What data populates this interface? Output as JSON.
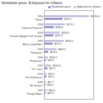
{
  "chart_data": {
    "type": "bar",
    "orientation": "horizontal",
    "title": "Worldwide gross, $ Adjusted for inflation",
    "categories": [
      "1990\n\"Ghost\"",
      "1993\n\"Indecent Proposal\"",
      "2003\n\"Charlie's Angels: Full Throttle\"",
      "1992\n\"A Few Good Men\"",
      "1996\n\"Striptease\"",
      "1996\n\"Stripteaser\"",
      "1997\n\"G.I. Jane\"",
      "2024\n\"The Substance\"",
      "2009\n\"Mr. Brooks\"",
      "1997\n\"Rough Magic\""
    ],
    "series": [
      {
        "name": "Worldwide gross",
        "color": "#9896c8",
        "values": [
          505.7,
          266.6,
          259.2,
          237.2,
          114.0,
          53.3,
          97.2,
          70.5,
          40.4,
          47.3
        ],
        "value_labels": [
          "$505.7",
          "$266.6",
          "$259.2",
          "$237.2",
          "$114.0",
          "$53.3",
          "$97.2",
          "$70.5",
          "$40.4",
          "$47.3"
        ]
      },
      {
        "name": "Adjusted for inflation",
        "color": "#c5c3de",
        "values": [
          1220.0,
          571.1,
          434.0,
          540.0,
          340.3,
          109.2,
          193.3,
          70.5,
          57.7,
          89.4
        ],
        "value_labels": [
          "$1220.0",
          "$571.1",
          "$434.0",
          "$540.0",
          "$340.3",
          "$109.2",
          "$193.3",
          "$70.5",
          "$57.7",
          "$89.4"
        ]
      }
    ],
    "xlim": [
      0,
      1340
    ],
    "data_labels": true,
    "tick_labels": false,
    "grid": false,
    "legend": "upper right"
  }
}
